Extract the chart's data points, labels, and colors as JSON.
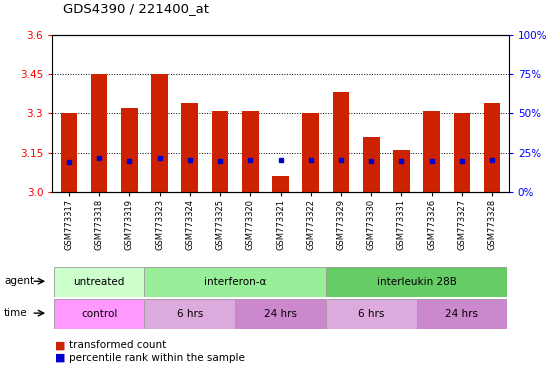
{
  "title": "GDS4390 / 221400_at",
  "samples": [
    "GSM773317",
    "GSM773318",
    "GSM773319",
    "GSM773323",
    "GSM773324",
    "GSM773325",
    "GSM773320",
    "GSM773321",
    "GSM773322",
    "GSM773329",
    "GSM773330",
    "GSM773331",
    "GSM773326",
    "GSM773327",
    "GSM773328"
  ],
  "red_values": [
    3.3,
    3.45,
    3.32,
    3.45,
    3.34,
    3.31,
    3.31,
    3.06,
    3.3,
    3.38,
    3.21,
    3.16,
    3.31,
    3.3,
    3.34
  ],
  "blue_values": [
    3.113,
    3.128,
    3.118,
    3.128,
    3.123,
    3.118,
    3.123,
    3.123,
    3.123,
    3.123,
    3.12,
    3.12,
    3.118,
    3.118,
    3.123
  ],
  "ylim": [
    3.0,
    3.6
  ],
  "yticks_left": [
    3.0,
    3.15,
    3.3,
    3.45,
    3.6
  ],
  "yticks_right_vals": [
    3.0,
    3.15,
    3.3,
    3.45,
    3.6
  ],
  "ytick_labels_right": [
    "0%",
    "25%",
    "50%",
    "75%",
    "100%"
  ],
  "hlines": [
    3.15,
    3.3,
    3.45
  ],
  "agent_groups": [
    {
      "label": "untreated",
      "start": 0,
      "end": 3,
      "color": "#ccffcc"
    },
    {
      "label": "interferon-α",
      "start": 3,
      "end": 9,
      "color": "#99ee99"
    },
    {
      "label": "interleukin 28B",
      "start": 9,
      "end": 15,
      "color": "#66cc66"
    }
  ],
  "time_groups": [
    {
      "label": "control",
      "start": 0,
      "end": 3,
      "color": "#ff99ff"
    },
    {
      "label": "6 hrs",
      "start": 3,
      "end": 6,
      "color": "#ddaadd"
    },
    {
      "label": "24 hrs",
      "start": 6,
      "end": 9,
      "color": "#cc88cc"
    },
    {
      "label": "6 hrs",
      "start": 9,
      "end": 12,
      "color": "#ddaadd"
    },
    {
      "label": "24 hrs",
      "start": 12,
      "end": 15,
      "color": "#cc88cc"
    }
  ],
  "bar_color": "#cc2200",
  "dot_color": "#0000cc",
  "legend_red": "transformed count",
  "legend_blue": "percentile rank within the sample",
  "background_color": "#ffffff",
  "bar_width": 0.55,
  "agent_label": "agent",
  "time_label": "time"
}
